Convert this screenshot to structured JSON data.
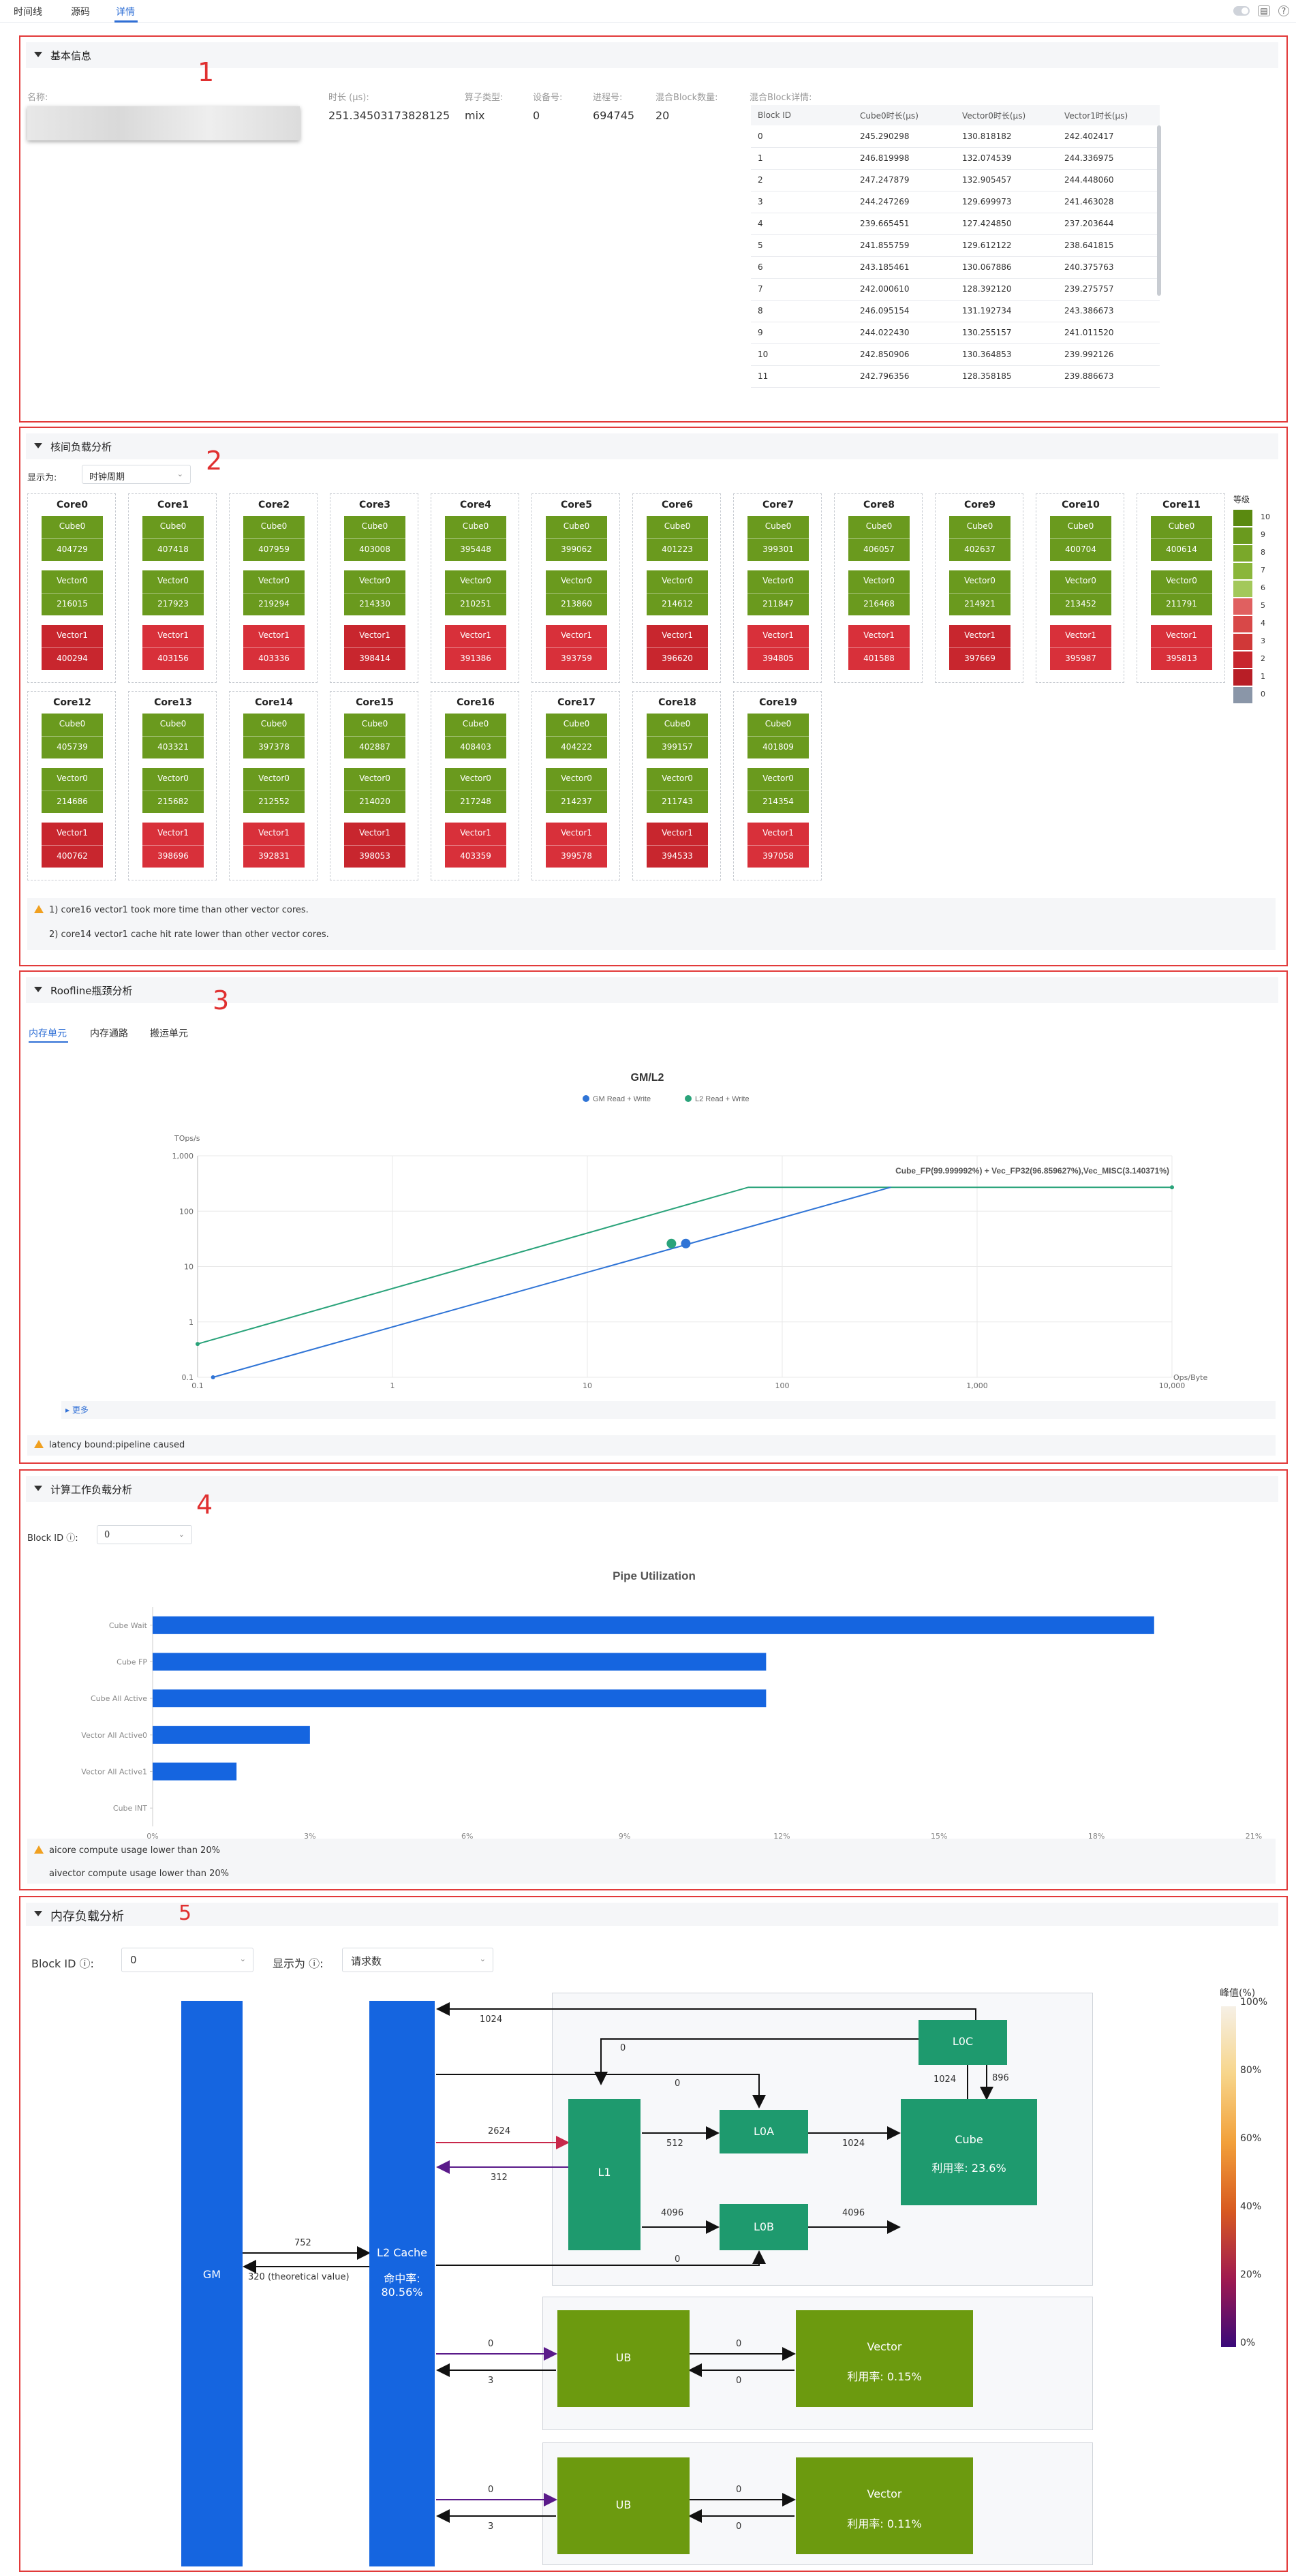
{
  "tabs": [
    {
      "label": "时间线"
    },
    {
      "label": "源码"
    },
    {
      "label": "详情"
    }
  ],
  "section1": {
    "number": "1",
    "title": "基本信息",
    "fields": [
      {
        "label": "名称:",
        "value": ""
      },
      {
        "label": "时长 (μs):",
        "value": "251.34503173828125"
      },
      {
        "label": "算子类型:",
        "value": "mix"
      },
      {
        "label": "设备号:",
        "value": "0"
      },
      {
        "label": "进程号:",
        "value": "694745"
      },
      {
        "label": "混合Block数量:",
        "value": "20"
      }
    ],
    "table_label": "混合Block详情:",
    "columns": [
      "Block ID",
      "Cube0时长(μs)",
      "Vector0时长(μs)",
      "Vector1时长(μs)"
    ],
    "rows": [
      [
        "0",
        "245.290298",
        "130.818182",
        "242.402417"
      ],
      [
        "1",
        "246.819998",
        "132.074539",
        "244.336975"
      ],
      [
        "2",
        "247.247879",
        "132.905457",
        "244.448060"
      ],
      [
        "3",
        "244.247269",
        "129.699973",
        "241.463028"
      ],
      [
        "4",
        "239.665451",
        "127.424850",
        "237.203644"
      ],
      [
        "5",
        "241.855759",
        "129.612122",
        "238.641815"
      ],
      [
        "6",
        "243.185461",
        "130.067886",
        "240.375763"
      ],
      [
        "7",
        "242.000610",
        "128.392120",
        "239.275757"
      ],
      [
        "8",
        "246.095154",
        "131.192734",
        "243.386673"
      ],
      [
        "9",
        "244.022430",
        "130.255157",
        "241.011520"
      ],
      [
        "10",
        "242.850906",
        "130.364853",
        "239.992126"
      ],
      [
        "11",
        "242.796356",
        "128.358185",
        "239.886673"
      ]
    ]
  },
  "section2": {
    "number": "2",
    "title": "核间负载分析",
    "display_label": "显示为:",
    "display_value": "时钟周期",
    "cores": [
      {
        "name": "Core0",
        "cube": "404729",
        "v0": "216015",
        "v1": "400294"
      },
      {
        "name": "Core1",
        "cube": "407418",
        "v0": "217923",
        "v1": "403156"
      },
      {
        "name": "Core2",
        "cube": "407959",
        "v0": "219294",
        "v1": "403336"
      },
      {
        "name": "Core3",
        "cube": "403008",
        "v0": "214330",
        "v1": "398414"
      },
      {
        "name": "Core4",
        "cube": "395448",
        "v0": "210251",
        "v1": "391386"
      },
      {
        "name": "Core5",
        "cube": "399062",
        "v0": "213860",
        "v1": "393759"
      },
      {
        "name": "Core6",
        "cube": "401223",
        "v0": "214612",
        "v1": "396620"
      },
      {
        "name": "Core7",
        "cube": "399301",
        "v0": "211847",
        "v1": "394805"
      },
      {
        "name": "Core8",
        "cube": "406057",
        "v0": "216468",
        "v1": "401588"
      },
      {
        "name": "Core9",
        "cube": "402637",
        "v0": "214921",
        "v1": "397669"
      },
      {
        "name": "Core10",
        "cube": "400704",
        "v0": "213452",
        "v1": "395987"
      },
      {
        "name": "Core11",
        "cube": "400614",
        "v0": "211791",
        "v1": "395813"
      },
      {
        "name": "Core12",
        "cube": "405739",
        "v0": "214686",
        "v1": "400762"
      },
      {
        "name": "Core13",
        "cube": "403321",
        "v0": "215682",
        "v1": "398696"
      },
      {
        "name": "Core14",
        "cube": "397378",
        "v0": "212552",
        "v1": "392831"
      },
      {
        "name": "Core15",
        "cube": "402887",
        "v0": "214020",
        "v1": "398053"
      },
      {
        "name": "Core16",
        "cube": "408403",
        "v0": "217248",
        "v1": "403359"
      },
      {
        "name": "Core17",
        "cube": "404222",
        "v0": "214237",
        "v1": "399578"
      },
      {
        "name": "Core18",
        "cube": "399157",
        "v0": "211743",
        "v1": "394533"
      },
      {
        "name": "Core19",
        "cube": "401809",
        "v0": "214354",
        "v1": "397058"
      }
    ],
    "cube_label": "Cube0",
    "v0_label": "Vector0",
    "v1_label": "Vector1",
    "legend_title": "等级",
    "legend_levels": [
      "10",
      "9",
      "8",
      "7",
      "6",
      "5",
      "4",
      "3",
      "2",
      "1",
      "0"
    ],
    "legend_colors": [
      "#5a8a10",
      "#6a9a1e",
      "#7aa82a",
      "#8ab63a",
      "#a3c85a",
      "#e06060",
      "#d84848",
      "#d03838",
      "#c8262e",
      "#b81e26",
      "#8a96a8"
    ],
    "notes": [
      "1) core16 vector1 took more time than other vector cores.",
      "2) core14 vector1 cache hit rate lower than other vector cores."
    ]
  },
  "section3": {
    "number": "3",
    "title": "Roofline瓶颈分析",
    "subtabs": [
      "内存单元",
      "内存通路",
      "搬运单元"
    ],
    "more": "更多",
    "note": "latency bound:pipeline caused"
  },
  "section4": {
    "number": "4",
    "title": "计算工作负载分析",
    "block_label": "Block ID",
    "block_value": "0",
    "note1": "aicore compute usage lower than 20%",
    "note2": "aivector compute usage lower than 20%"
  },
  "section5": {
    "number": "5",
    "title": "内存负载分析",
    "block_label": "Block ID",
    "block_value": "0",
    "display_label": "显示为",
    "display_value": "请求数",
    "nodes": {
      "gm": "GM",
      "l2": "L2 Cache",
      "l2_hit": "命中率:",
      "l2_hit_val": "80.56%",
      "l1": "L1",
      "l0a": "L0A",
      "l0b": "L0B",
      "l0c": "L0C",
      "cube": "Cube",
      "cube_util": "利用率: 23.6%",
      "ub1": "UB",
      "vec1": "Vector",
      "vec1_util": "利用率: 0.15%",
      "ub2": "UB",
      "vec2": "Vector",
      "vec2_util": "利用率: 0.11%"
    },
    "edges": {
      "l0c_l2": "1024",
      "l0c_l1": "0",
      "l2_l0a": "0",
      "l2_l1": "2624",
      "l1_l2": "312",
      "l1_l0a": "512",
      "l0a_cube": "1024",
      "l0c_cube": "1024",
      "cube_l0c": "896",
      "l1_l0b": "4096",
      "l0b_cube": "4096",
      "l2_l0b": "0",
      "gm_l2": "752",
      "l2_gm": "320 (theoretical value)",
      "l2_ub1": "0",
      "ub1_l2": "3",
      "ub1_vec1": "0",
      "vec1_ub1": "0",
      "l2_ub2": "0",
      "ub2_l2": "3",
      "ub2_vec2": "0",
      "vec2_ub2": "0"
    },
    "legend_title": "峰值(%)",
    "legend_ticks": [
      "100%",
      "80%",
      "60%",
      "40%",
      "20%",
      "0%"
    ]
  },
  "chart_data": [
    {
      "type": "line",
      "title": "GM/L2",
      "series": [
        {
          "name": "GM Read + Write"
        },
        {
          "name": "L2 Read + Write"
        }
      ],
      "ylabel": "TOps/s",
      "xlabel": "Ops/Byte",
      "xscale": "log",
      "yscale": "log",
      "xlim": [
        0.1,
        10000
      ],
      "ylim": [
        0.1,
        1000
      ],
      "xticks": [
        "0.1",
        "1",
        "10",
        "100",
        "1,000",
        "10,000"
      ],
      "yticks": [
        "1,000",
        "100",
        "10",
        "1",
        "0.1"
      ],
      "annotation": "Cube_FP(99.999992%) + Vec_FP32(96.859627%),Vec_MISC(3.140371%)"
    },
    {
      "type": "bar",
      "title": "Pipe Utilization",
      "categories": [
        "Cube Wait",
        "Cube FP",
        "Cube All Active",
        "Vector All Active0",
        "Vector All Active1",
        "Cube INT"
      ],
      "values": [
        19.1,
        11.7,
        11.7,
        3.0,
        1.6,
        0
      ],
      "xlim": [
        0,
        21
      ],
      "xticks": [
        "0%",
        "3%",
        "6%",
        "9%",
        "12%",
        "15%",
        "18%",
        "21%"
      ]
    }
  ]
}
